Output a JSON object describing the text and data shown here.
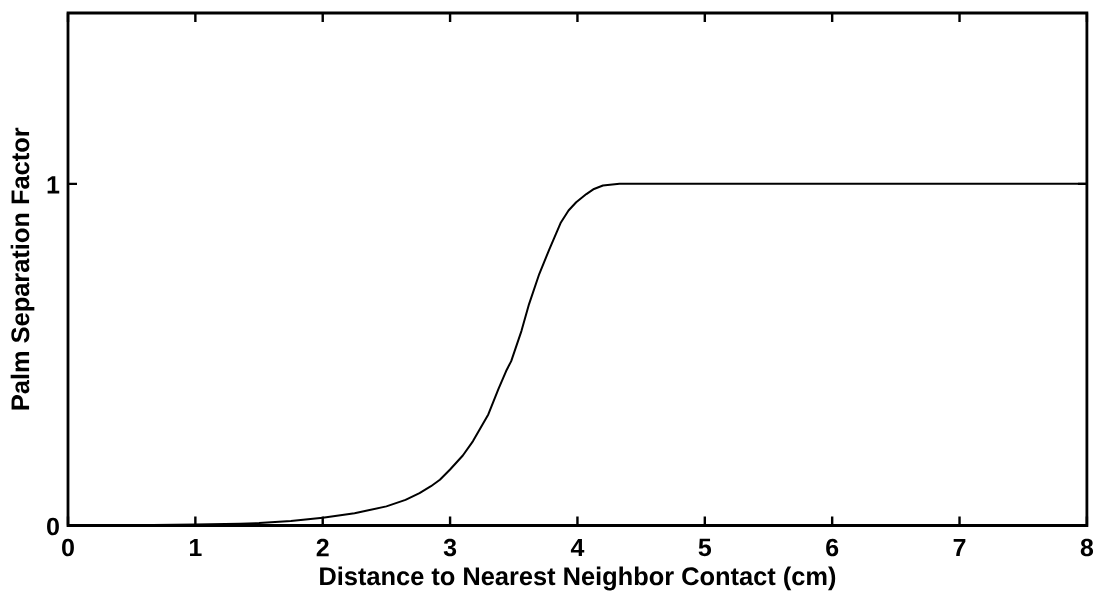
{
  "chart_data": {
    "type": "line",
    "xlabel": "Distance to Nearest Neighbor Contact (cm)",
    "ylabel": "Palm Separation Factor",
    "x": [
      0,
      0.5,
      1,
      1.35,
      1.5,
      1.75,
      2,
      2.25,
      2.5,
      2.65,
      2.76,
      2.85,
      2.92,
      3,
      3.1,
      3.18,
      3.3,
      3.38,
      3.44,
      3.48,
      3.56,
      3.62,
      3.7,
      3.78,
      3.87,
      3.93,
      3.99,
      4.07,
      4.13,
      4.2,
      4.33,
      5,
      6,
      7,
      8
    ],
    "values": [
      0,
      0.001,
      0.003,
      0.005,
      0.007,
      0.013,
      0.023,
      0.036,
      0.056,
      0.075,
      0.095,
      0.115,
      0.134,
      0.164,
      0.205,
      0.247,
      0.325,
      0.4,
      0.452,
      0.481,
      0.569,
      0.648,
      0.736,
      0.809,
      0.887,
      0.922,
      0.946,
      0.97,
      0.985,
      0.995,
      1,
      1,
      1,
      1,
      1
    ],
    "color": "#000000",
    "xlim": [
      0,
      8
    ],
    "ylim": [
      0,
      1.5
    ],
    "xticks": [
      0,
      1,
      2,
      3,
      4,
      5,
      6,
      7,
      8
    ],
    "yticks": [
      0,
      1
    ]
  }
}
